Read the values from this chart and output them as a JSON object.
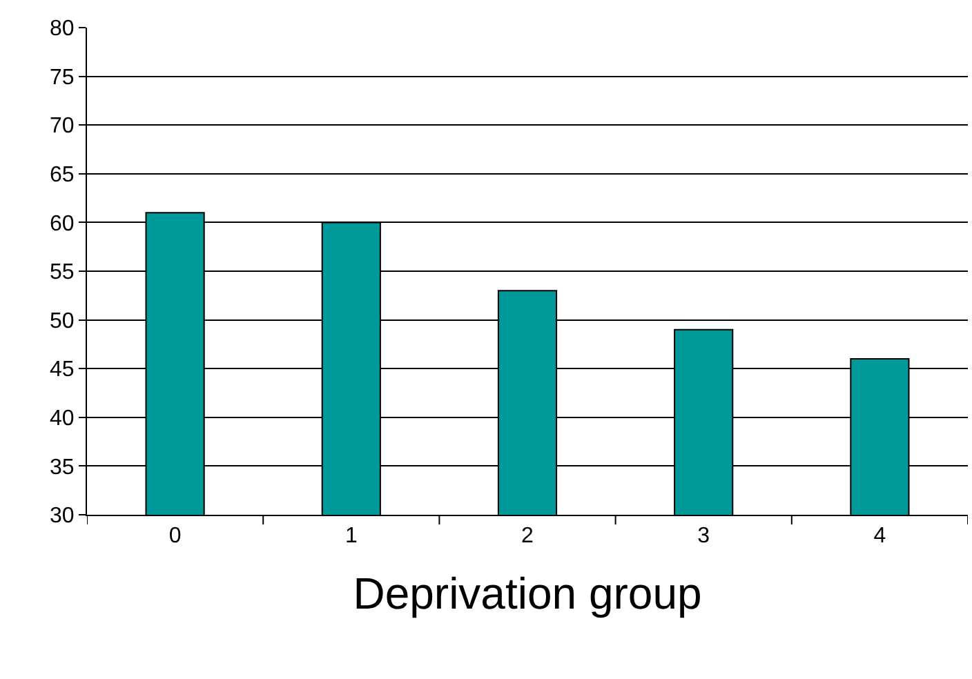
{
  "chart_data": {
    "type": "bar",
    "xlabel": "Deprivation group",
    "categories": [
      "0",
      "1",
      "2",
      "3",
      "4"
    ],
    "values": [
      61,
      60,
      53,
      49,
      46
    ],
    "color": "#009999",
    "ylim": [
      30,
      80
    ],
    "yticks": [
      30,
      35,
      40,
      45,
      50,
      55,
      60,
      65,
      70,
      75,
      80
    ],
    "grid": "y"
  }
}
